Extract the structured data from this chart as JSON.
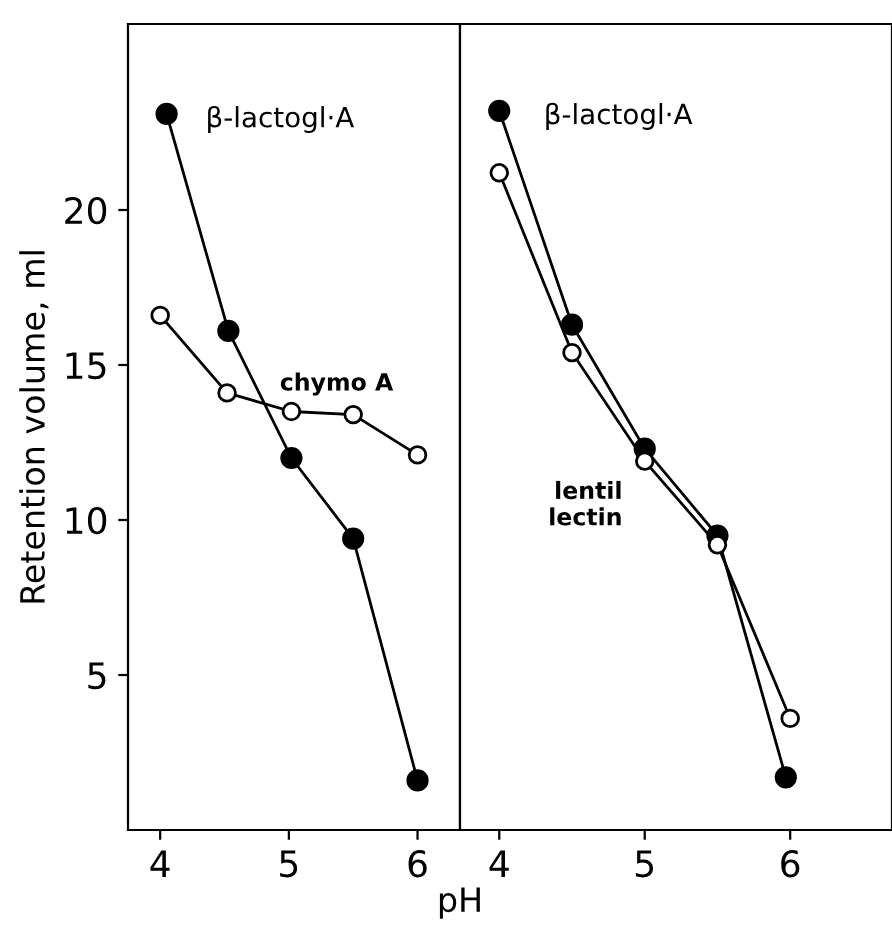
{
  "chart_data": [
    {
      "type": "line",
      "ylabel": "Retention volume, ml",
      "xlabel": "pH",
      "xlim": [
        3.75,
        6.33
      ],
      "xticks": [
        4,
        5,
        6
      ],
      "ylim": [
        0,
        26
      ],
      "yticks": [
        5,
        10,
        15,
        20
      ],
      "marker": "circle",
      "grid": false,
      "legend": false,
      "series": [
        {
          "name": "β-lactogl·A",
          "color": "#000000",
          "x": [
            4.05,
            4.53,
            5.02,
            5.5,
            6.0
          ],
          "values": [
            23.1,
            16.1,
            12.0,
            9.4,
            1.6
          ]
        },
        {
          "name": "chymo A",
          "color": "#000000",
          "x": [
            4.0,
            4.52,
            5.02,
            5.5,
            6.0
          ],
          "values": [
            16.6,
            14.1,
            13.5,
            13.4,
            12.1
          ]
        }
      ]
    },
    {
      "type": "line",
      "xlim": [
        3.73,
        6.7
      ],
      "xticks": [
        4,
        5,
        6
      ],
      "ylim": [
        0,
        26
      ],
      "yticks": [
        5,
        10,
        15,
        20
      ],
      "tick_labels": "x",
      "marker": "circle",
      "grid": false,
      "legend": false,
      "series": [
        {
          "name": "β-lactogl·A",
          "color": "#000000",
          "x": [
            4.0,
            4.5,
            5.0,
            5.5,
            5.97
          ],
          "values": [
            23.2,
            16.3,
            12.3,
            9.5,
            1.7
          ]
        },
        {
          "name": "lentil\nlectin",
          "color": "#000000",
          "x": [
            4.0,
            4.5,
            5.0,
            5.5,
            6.0
          ],
          "values": [
            21.2,
            15.4,
            11.9,
            9.2,
            3.6
          ]
        }
      ]
    }
  ]
}
